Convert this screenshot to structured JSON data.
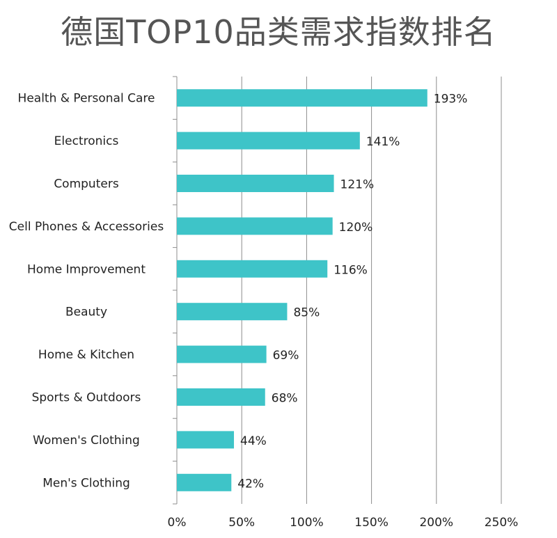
{
  "chart_data": {
    "type": "bar",
    "orientation": "horizontal",
    "title": "德国TOP10品类需求指数排名",
    "categories": [
      "Health & Personal Care",
      "Electronics",
      "Computers",
      "Cell Phones & Accessories",
      "Home Improvement",
      "Beauty",
      "Home & Kitchen",
      "Sports & Outdoors",
      "Women's Clothing",
      "Men's Clothing"
    ],
    "values": [
      193,
      141,
      121,
      120,
      116,
      85,
      69,
      68,
      44,
      42
    ],
    "value_labels": [
      "193%",
      "141%",
      "121%",
      "120%",
      "116%",
      "85%",
      "69%",
      "68%",
      "44%",
      "42%"
    ],
    "xlim": [
      0,
      250
    ],
    "xticks": [
      "0%",
      "50%",
      "100%",
      "150%",
      "200%",
      "250%"
    ],
    "grid": true,
    "bar_color": "#3ec4c8"
  }
}
